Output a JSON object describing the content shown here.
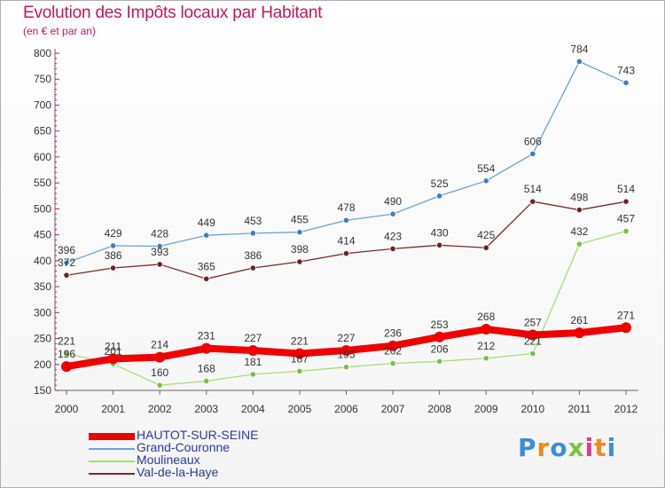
{
  "header": {
    "title": "Evolution des Impôts locaux par Habitant",
    "subtitle": "(en € et par an)"
  },
  "logo": {
    "text": "Proxiti",
    "colors": [
      "#3a8fd8",
      "#f08a1c",
      "#3a8fd8",
      "#7cc242",
      "#e83a8a",
      "#f08a1c",
      "#3a8fd8"
    ]
  },
  "chart_data": {
    "type": "line",
    "x": [
      "2000",
      "2001",
      "2002",
      "2003",
      "2004",
      "2005",
      "2006",
      "2007",
      "2008",
      "2009",
      "2010",
      "2011",
      "2012"
    ],
    "ylim": [
      150,
      800
    ],
    "yticks": [
      150,
      200,
      250,
      300,
      350,
      400,
      450,
      500,
      550,
      600,
      650,
      700,
      750,
      800
    ],
    "grid": false,
    "legend_position": "bottom-left",
    "series": [
      {
        "name": "HAUTOT-SUR-SEINE",
        "color": "#ee0000",
        "style": "thick",
        "values": [
          196,
          211,
          214,
          231,
          227,
          221,
          227,
          236,
          253,
          268,
          257,
          261,
          271
        ]
      },
      {
        "name": "Grand-Couronne",
        "color": "#6aa3d5",
        "marker": "#3e7ec4",
        "values": [
          396,
          429,
          428,
          449,
          453,
          455,
          478,
          490,
          525,
          554,
          606,
          784,
          743
        ]
      },
      {
        "name": "Moulineaux",
        "color": "#a6dc77",
        "marker": "#7ac143",
        "values": [
          221,
          201,
          160,
          168,
          181,
          187,
          195,
          202,
          206,
          212,
          221,
          432,
          457
        ]
      },
      {
        "name": "Val-de-la-Haye",
        "color": "#7a2a2a",
        "marker": "#6b2222",
        "values": [
          372,
          386,
          393,
          365,
          386,
          398,
          414,
          423,
          430,
          425,
          514,
          498,
          514
        ]
      }
    ]
  }
}
